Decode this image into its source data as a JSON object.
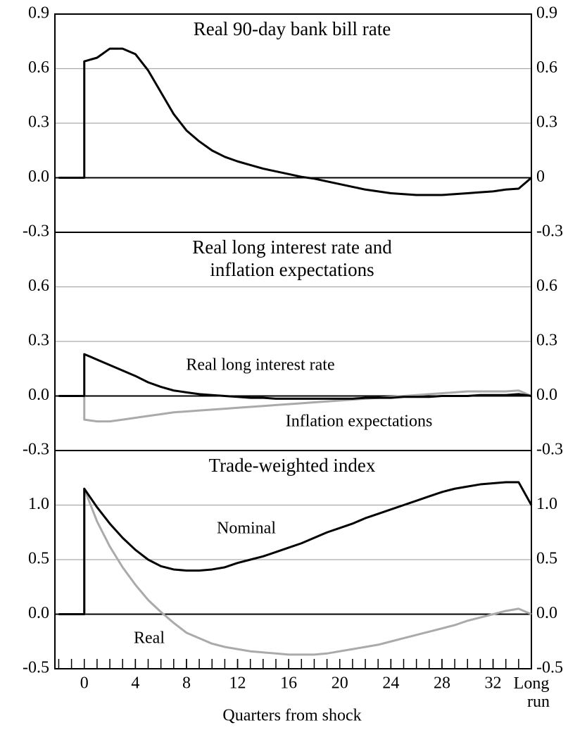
{
  "chart_data": [
    {
      "type": "line",
      "title": "Real 90-day bank bill rate",
      "x": [
        -2,
        0,
        0,
        1,
        2,
        3,
        4,
        5,
        6,
        7,
        8,
        9,
        10,
        11,
        12,
        13,
        14,
        15,
        16,
        17,
        18,
        19,
        20,
        21,
        22,
        23,
        24,
        25,
        26,
        27,
        28,
        29,
        30,
        31,
        32,
        33,
        34,
        35
      ],
      "values": [
        0,
        0,
        0.64,
        0.66,
        0.71,
        0.71,
        0.68,
        0.59,
        0.47,
        0.35,
        0.26,
        0.2,
        0.15,
        0.115,
        0.09,
        0.07,
        0.05,
        0.035,
        0.02,
        0.005,
        -0.005,
        -0.02,
        -0.035,
        -0.05,
        -0.065,
        -0.075,
        -0.085,
        -0.09,
        -0.095,
        -0.095,
        -0.095,
        -0.09,
        -0.085,
        -0.08,
        -0.075,
        -0.065,
        -0.06,
        0
      ],
      "color": "#000000",
      "ylim": [
        -0.3,
        0.9
      ],
      "yticks": [
        0.9,
        0.6,
        0.3,
        {
          "value": 0,
          "label": "0.0"
        },
        -0.3
      ],
      "y2lim": [
        -0.3,
        0.9
      ],
      "y2ticks": [
        0.9,
        0.6,
        0.3,
        0,
        -0.3
      ],
      "xlim": [
        -2.3,
        35
      ],
      "grid": true
    },
    {
      "type": "line",
      "title": [
        "Real long interest rate and",
        "inflation expectations"
      ],
      "x": [
        -2,
        0,
        0,
        1,
        2,
        3,
        4,
        5,
        6,
        7,
        8,
        9,
        10,
        11,
        12,
        13,
        14,
        15,
        16,
        17,
        18,
        19,
        20,
        21,
        22,
        23,
        24,
        25,
        26,
        27,
        28,
        29,
        30,
        31,
        32,
        33,
        34,
        35
      ],
      "series": [
        {
          "name": "Inflation expectations",
          "color": "#aaaaaa",
          "values": [
            0,
            0,
            -0.13,
            -0.14,
            -0.14,
            -0.13,
            -0.12,
            -0.11,
            -0.1,
            -0.09,
            -0.085,
            -0.08,
            -0.075,
            -0.07,
            -0.065,
            -0.06,
            -0.055,
            -0.05,
            -0.045,
            -0.04,
            -0.035,
            -0.03,
            -0.025,
            -0.02,
            -0.015,
            -0.01,
            -0.005,
            0,
            0.005,
            0.01,
            0.015,
            0.02,
            0.025,
            0.025,
            0.025,
            0.025,
            0.03,
            0
          ]
        },
        {
          "name": "Real long interest rate",
          "color": "#000000",
          "values": [
            0,
            0,
            0.23,
            0.2,
            0.17,
            0.14,
            0.11,
            0.075,
            0.05,
            0.03,
            0.02,
            0.01,
            0.005,
            0,
            -0.005,
            -0.01,
            -0.01,
            -0.015,
            -0.015,
            -0.015,
            -0.015,
            -0.015,
            -0.015,
            -0.015,
            -0.01,
            -0.01,
            -0.01,
            -0.005,
            -0.005,
            -0.005,
            0,
            0,
            0,
            0.005,
            0.005,
            0.005,
            0.01,
            0
          ]
        }
      ],
      "ylim": [
        -0.3,
        0.9
      ],
      "yticks": [
        0.6,
        0.3,
        {
          "value": 0,
          "label": "0.0"
        },
        -0.3
      ],
      "y2lim": [
        -0.3,
        0.9
      ],
      "y2ticks": [
        0.6,
        0.3,
        {
          "value": 0,
          "label": "0.0"
        },
        -0.3
      ],
      "xlim": [
        -2.3,
        35
      ],
      "grid": true
    },
    {
      "type": "line",
      "title": "Trade-weighted index",
      "xlabel": "Quarters from shock",
      "x": [
        -2,
        0,
        0,
        1,
        2,
        3,
        4,
        5,
        6,
        7,
        8,
        9,
        10,
        11,
        12,
        13,
        14,
        15,
        16,
        17,
        18,
        19,
        20,
        21,
        22,
        23,
        24,
        25,
        26,
        27,
        28,
        29,
        30,
        31,
        32,
        33,
        34,
        35
      ],
      "series": [
        {
          "name": "Real",
          "color": "#aaaaaa",
          "values": [
            0,
            0,
            1.15,
            0.85,
            0.62,
            0.43,
            0.27,
            0.13,
            0.02,
            -0.08,
            -0.17,
            -0.22,
            -0.27,
            -0.3,
            -0.32,
            -0.34,
            -0.35,
            -0.36,
            -0.37,
            -0.37,
            -0.37,
            -0.36,
            -0.34,
            -0.32,
            -0.3,
            -0.28,
            -0.25,
            -0.22,
            -0.19,
            -0.16,
            -0.13,
            -0.1,
            -0.06,
            -0.03,
            0,
            0.03,
            0.05,
            0
          ]
        },
        {
          "name": "Nominal",
          "color": "#000000",
          "values": [
            0,
            0,
            1.15,
            0.98,
            0.83,
            0.7,
            0.59,
            0.5,
            0.44,
            0.41,
            0.4,
            0.4,
            0.41,
            0.43,
            0.47,
            0.5,
            0.53,
            0.57,
            0.61,
            0.65,
            0.7,
            0.75,
            0.79,
            0.83,
            0.88,
            0.92,
            0.96,
            1.0,
            1.04,
            1.08,
            1.12,
            1.15,
            1.17,
            1.19,
            1.2,
            1.21,
            1.21,
            1.0
          ]
        }
      ],
      "ylim": [
        -0.5,
        1.5
      ],
      "yticks": [
        {
          "value": 1,
          "label": "1.0"
        },
        0.5,
        {
          "value": 0,
          "label": "0.0"
        },
        -0.5
      ],
      "y2lim": [
        -0.5,
        1.5
      ],
      "y2ticks": [
        {
          "value": 1,
          "label": "1.0"
        },
        0.5,
        {
          "value": 0,
          "label": "0.0"
        },
        -0.5
      ],
      "xlim": [
        -2.3,
        35
      ],
      "xticks": [
        0,
        4,
        8,
        12,
        16,
        20,
        24,
        28,
        32,
        {
          "value": 35,
          "label": "Long run"
        }
      ],
      "minor_xticks": [
        -2,
        -1,
        0,
        1,
        2,
        3,
        4,
        5,
        6,
        7,
        8,
        9,
        10,
        11,
        12,
        13,
        14,
        15,
        16,
        17,
        18,
        19,
        20,
        21,
        22,
        23,
        24,
        25,
        26,
        27,
        28,
        29,
        30,
        31,
        32,
        33,
        34
      ],
      "grid": true
    }
  ]
}
